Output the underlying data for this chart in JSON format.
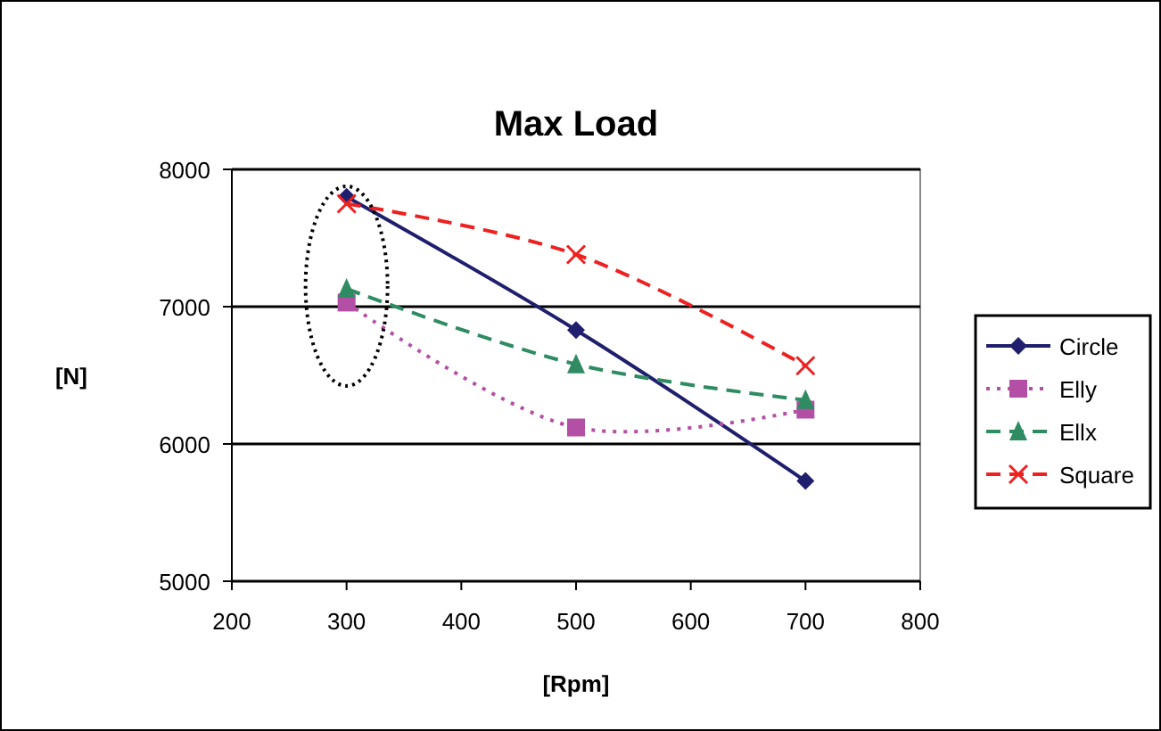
{
  "chart_data": {
    "type": "line",
    "title": "Max Load",
    "xlabel": "[Rpm]",
    "ylabel": "[N]",
    "x": [
      300,
      500,
      700
    ],
    "series": [
      {
        "name": "Circle",
        "color": "#1f1f6e",
        "values": [
          7800,
          6830,
          5730
        ],
        "marker": "diamond",
        "line_style": "solid"
      },
      {
        "name": "Elly",
        "color": "#b44fa6",
        "values": [
          7030,
          6120,
          6250
        ],
        "marker": "square",
        "line_style": "dotted"
      },
      {
        "name": "Ellx",
        "color": "#2e8b62",
        "values": [
          7130,
          6580,
          6320
        ],
        "marker": "triangle",
        "line_style": "dashed"
      },
      {
        "name": "Square",
        "color": "#ee2020",
        "values": [
          7750,
          7380,
          6570
        ],
        "marker": "cross",
        "line_style": "dashed"
      }
    ],
    "xlim": [
      200,
      800
    ],
    "xticks": [
      200,
      300,
      400,
      500,
      600,
      700,
      800
    ],
    "ylim": [
      5000,
      8000
    ],
    "yticks": [
      5000,
      6000,
      7000,
      8000
    ],
    "grid": "y",
    "legend": "right"
  }
}
